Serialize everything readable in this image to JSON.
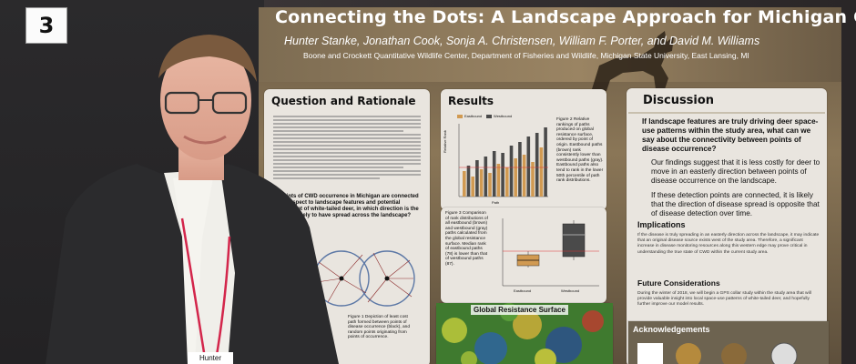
{
  "card_number": "3",
  "poster": {
    "title": "Connecting the Dots: A Landscape Approach for Michigan CWD",
    "authors": "Hunter Stanke, Jonathan Cook, Sonja A. Christensen, William F. Porter, and David M. Williams",
    "affiliation": "Boone and Crockett Quantitative Wildlife Center, Department of Fisheries and Wildlife, Michigan State University, East Lansing, MI",
    "question_section": {
      "heading": "Question and Rationale",
      "highlight": "If points of CWD occurrence in Michigan are connected with respect to landscape features and potential movement of white-tailed deer, in which direction is the disease likely to have spread across the landscape?",
      "figure1_caption": "Figure 1 Depiction of least cost path formed between points of disease occurrence (black), and random points originating from points of occurrence."
    },
    "results_section": {
      "heading": "Results",
      "legend_east": "Eastbound",
      "legend_west": "Westbound",
      "figure2_caption": "Figure 2 Relative rankings of paths produced on global resistance surface, ordered by point of origin. Eastbound paths (brown) rank consistently lower than westbound paths (gray). Eastbound paths also tend to rank in the lower 50th percentile of path rank distributions.",
      "figure3_caption": "Figure 3 Comparison of rank distributions of all eastbound (brown) and westbound (gray) paths calculated from the global resistance surface. Median rank of eastbound paths (78) is lower than that of westbound paths (87).",
      "axis_y": "Relative Rank",
      "axis_x": "Path",
      "east_label": "Eastbound",
      "west_label": "Westbound",
      "global_surface_label": "Global Resistance Surface"
    },
    "discussion_section": {
      "heading": "Discussion",
      "question": "If landscape features are truly driving deer space-use patterns within the study area, what can we say about the connectivity between points of disease occurrence?",
      "bullet1": "Our findings suggest that it is less costly for deer to move in an easterly direction between points of disease occurrence on the landscape.",
      "bullet2": "If these detection points are connected, it is likely that the direction of disease spread is opposite that of disease detection over time.",
      "implications_heading": "Implications",
      "implications_text": "If the disease is truly spreading in an easterly direction across the landscape, it may indicate that an original disease source exists west of the study area. Therefore, a significant increase in disease monitoring resources along this western edge may prove critical in understanding the true state of CWD within the current study area.",
      "future_heading": "Future Considerations",
      "future_text": "During the winter of 2018, we will begin a GPS collar study within the study area that will provide valuable insight into local space-use patterns of white-tailed deer, and hopefully further improve our model results."
    },
    "ack_heading": "Acknowledgements"
  },
  "badge_name": "Hunter",
  "colors": {
    "poster_bg": "#7d6c52",
    "panel_bg": "#e9e5df",
    "eastbound": "#d19a52",
    "westbound": "#4a4a4a",
    "median_line": "#d33"
  }
}
